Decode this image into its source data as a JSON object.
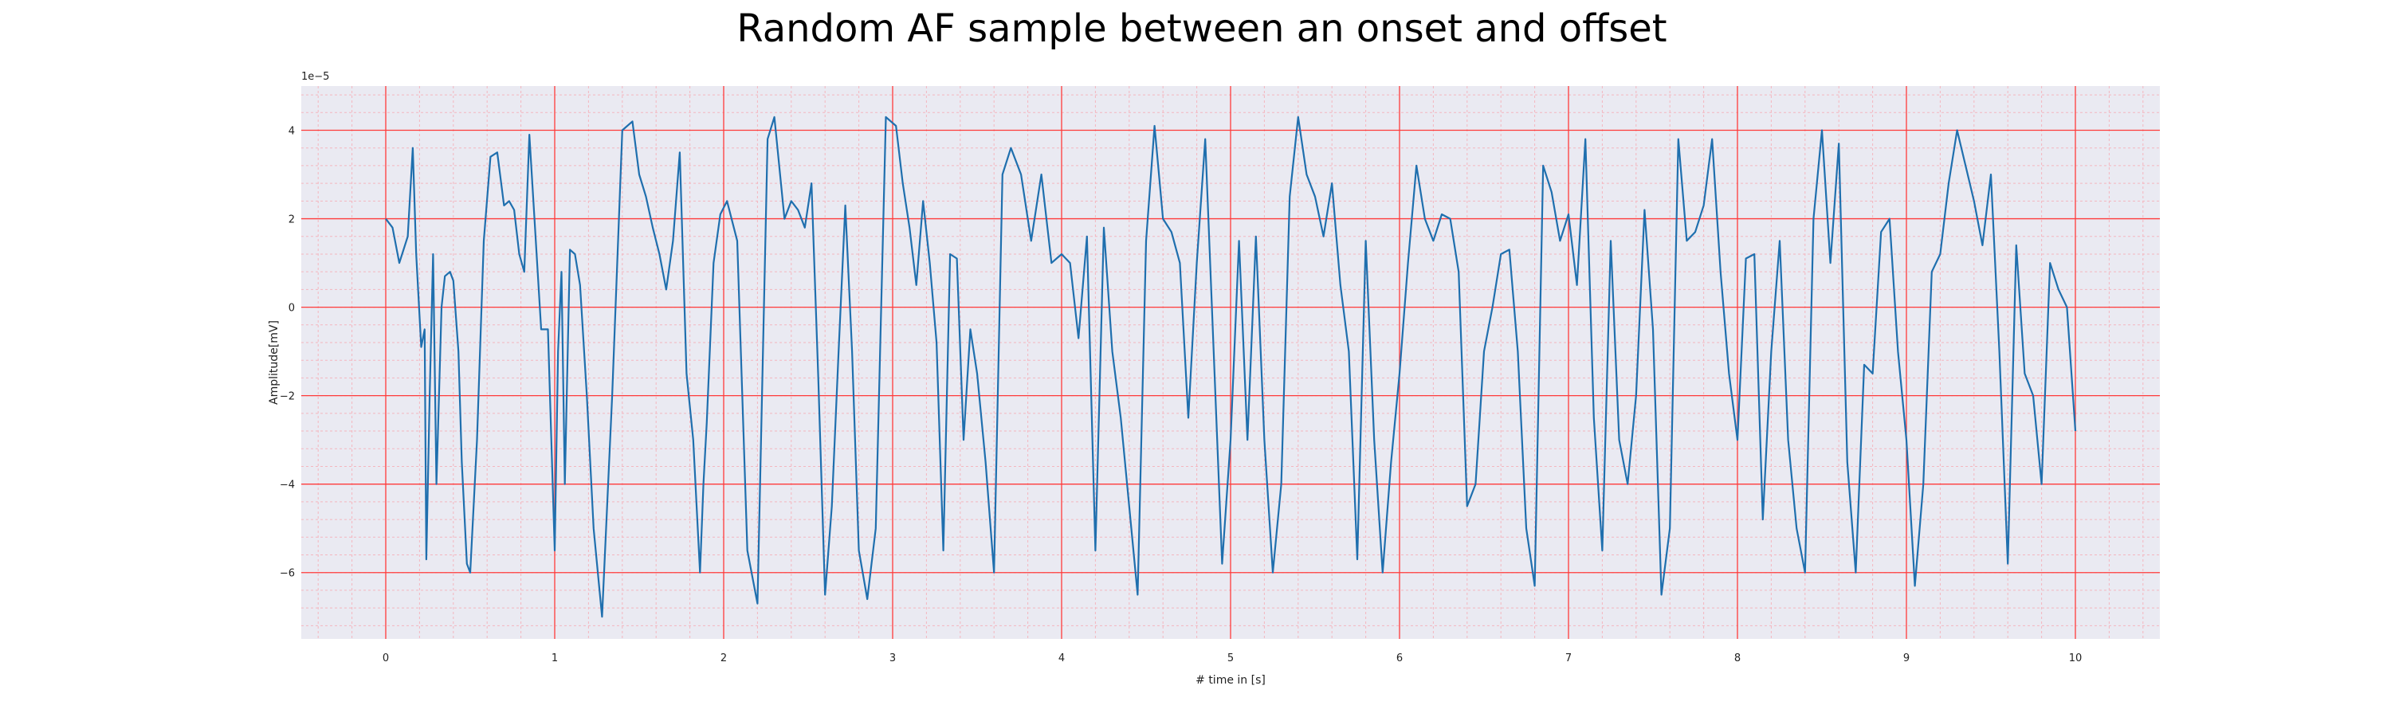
{
  "chart_data": {
    "type": "line",
    "title": "Random AF sample between an onset and offset",
    "xlabel": "# time in [s]",
    "ylabel": "Amplitude[mV]",
    "y_offset_label": "1e−5",
    "xlim": [
      -0.5,
      10.5
    ],
    "ylim": [
      -7.5,
      5.0
    ],
    "x_ticks": [
      0,
      1,
      2,
      3,
      4,
      5,
      6,
      7,
      8,
      9,
      10
    ],
    "y_ticks": [
      -6,
      -4,
      -2,
      0,
      2,
      4
    ],
    "y_tick_labels": [
      "−6",
      "−4",
      "−2",
      "0",
      "2",
      "4"
    ],
    "grid": true,
    "y_unit_scale": "1e-5",
    "colors": {
      "background": "#eaeaf2",
      "major_grid": "#ff3b3b",
      "minor_grid": "#f4b6bf",
      "line": "#1f6fae"
    },
    "series": [
      {
        "x": [
          0.0,
          0.04,
          0.08,
          0.13,
          0.16,
          0.18,
          0.21,
          0.23,
          0.24,
          0.26,
          0.28,
          0.3,
          0.33,
          0.35,
          0.38,
          0.4,
          0.43,
          0.45,
          0.48,
          0.5,
          0.54,
          0.58,
          0.62,
          0.66,
          0.7,
          0.73,
          0.76,
          0.79,
          0.82,
          0.85,
          0.88,
          0.92,
          0.96,
          1.0,
          1.02,
          1.04,
          1.06,
          1.09,
          1.12,
          1.15,
          1.19,
          1.23,
          1.28,
          1.34,
          1.4,
          1.46,
          1.5,
          1.54,
          1.58,
          1.62,
          1.66,
          1.7,
          1.74,
          1.78,
          1.82,
          1.86,
          1.88,
          1.9,
          1.94,
          1.98,
          2.02,
          2.08,
          2.14,
          2.2,
          2.26,
          2.3,
          2.36,
          2.4,
          2.44,
          2.48,
          2.52,
          2.56,
          2.6,
          2.64,
          2.68,
          2.72,
          2.76,
          2.8,
          2.85,
          2.9,
          2.96,
          3.02,
          3.06,
          3.1,
          3.14,
          3.18,
          3.22,
          3.26,
          3.3,
          3.34,
          3.38,
          3.42,
          3.46,
          3.5,
          3.55,
          3.6,
          3.65,
          3.7,
          3.76,
          3.82,
          3.88,
          3.94,
          4.0,
          4.05,
          4.1,
          4.15,
          4.2,
          4.25,
          4.3,
          4.35,
          4.4,
          4.45,
          4.5,
          4.55,
          4.6,
          4.65,
          4.7,
          4.75,
          4.8,
          4.85,
          4.9,
          4.95,
          5.0,
          5.05,
          5.1,
          5.15,
          5.2,
          5.25,
          5.3,
          5.35,
          5.4,
          5.45,
          5.5,
          5.55,
          5.6,
          5.65,
          5.7,
          5.75,
          5.8,
          5.85,
          5.9,
          5.95,
          6.0,
          6.05,
          6.1,
          6.15,
          6.2,
          6.25,
          6.3,
          6.35,
          6.4,
          6.45,
          6.5,
          6.55,
          6.6,
          6.65,
          6.7,
          6.75,
          6.8,
          6.85,
          6.9,
          6.95,
          7.0,
          7.05,
          7.1,
          7.15,
          7.2,
          7.25,
          7.3,
          7.35,
          7.4,
          7.45,
          7.5,
          7.55,
          7.6,
          7.65,
          7.7,
          7.75,
          7.8,
          7.85,
          7.9,
          7.95,
          8.0,
          8.05,
          8.1,
          8.15,
          8.2,
          8.25,
          8.3,
          8.35,
          8.4,
          8.45,
          8.5,
          8.55,
          8.6,
          8.65,
          8.7,
          8.75,
          8.8,
          8.85,
          8.9,
          8.95,
          9.0,
          9.05,
          9.1,
          9.15,
          9.2,
          9.25,
          9.3,
          9.35,
          9.4,
          9.45,
          9.5,
          9.55,
          9.6,
          9.65,
          9.7,
          9.75,
          9.8,
          9.85,
          9.9,
          9.95,
          10.0
        ],
        "y": [
          2.0,
          1.8,
          1.0,
          1.6,
          3.6,
          1.2,
          -0.9,
          -0.5,
          -5.7,
          -2.0,
          1.2,
          -4.0,
          0.0,
          0.7,
          0.8,
          0.6,
          -1.0,
          -3.5,
          -5.8,
          -6.0,
          -3.0,
          1.5,
          3.4,
          3.5,
          2.3,
          2.4,
          2.2,
          1.2,
          0.8,
          3.9,
          2.0,
          -0.5,
          -0.5,
          -5.5,
          -1.0,
          0.8,
          -4.0,
          1.3,
          1.2,
          0.5,
          -2.0,
          -5.0,
          -7.0,
          -2.0,
          4.0,
          4.2,
          3.0,
          2.5,
          1.8,
          1.2,
          0.4,
          1.5,
          3.5,
          -1.5,
          -3.0,
          -6.0,
          -4.0,
          -2.6,
          1.0,
          2.1,
          2.4,
          1.5,
          -5.5,
          -6.7,
          3.8,
          4.3,
          2.0,
          2.4,
          2.2,
          1.8,
          2.8,
          -1.6,
          -6.5,
          -4.5,
          -1.0,
          2.3,
          -1.0,
          -5.5,
          -6.6,
          -5.0,
          4.3,
          4.1,
          2.8,
          1.8,
          0.5,
          2.4,
          1.0,
          -0.8,
          -5.5,
          1.2,
          1.1,
          -3.0,
          -0.5,
          -1.5,
          -3.5,
          -6.0,
          3.0,
          3.6,
          3.0,
          1.5,
          3.0,
          1.0,
          1.2,
          1.0,
          -0.7,
          1.6,
          -5.5,
          1.8,
          -1.0,
          -2.5,
          -4.5,
          -6.5,
          1.5,
          4.1,
          2.0,
          1.7,
          1.0,
          -2.5,
          1.0,
          3.8,
          -1.0,
          -5.8,
          -3.0,
          1.5,
          -3.0,
          1.6,
          -3.0,
          -6.0,
          -4.0,
          2.5,
          4.3,
          3.0,
          2.5,
          1.6,
          2.8,
          0.5,
          -1.0,
          -5.7,
          1.5,
          -3.0,
          -6.0,
          -3.5,
          -1.5,
          1.0,
          3.2,
          2.0,
          1.5,
          2.1,
          2.0,
          0.8,
          -4.5,
          -4.0,
          -1.0,
          0.0,
          1.2,
          1.3,
          -1.0,
          -5.0,
          -6.3,
          3.2,
          2.6,
          1.5,
          2.1,
          0.5,
          3.8,
          -2.5,
          -5.5,
          1.5,
          -3.0,
          -4.0,
          -2.0,
          2.2,
          -0.5,
          -6.5,
          -5.0,
          3.8,
          1.5,
          1.7,
          2.3,
          3.8,
          0.8,
          -1.5,
          -3.0,
          1.1,
          1.2,
          -4.8,
          -1.0,
          1.5,
          -3.0,
          -5.0,
          -6.0,
          2.0,
          4.0,
          1.0,
          3.7,
          -3.5,
          -6.0,
          -1.3,
          -1.5,
          1.7,
          2.0,
          -1.0,
          -3.0,
          -6.3,
          -4.0,
          0.8,
          1.2,
          2.8,
          4.0,
          3.2,
          2.4,
          1.4,
          3.0,
          -1.0,
          -5.8,
          1.4,
          -1.5,
          -2.0,
          -4.0,
          1.0,
          0.4,
          0.0,
          -2.8
        ]
      }
    ]
  }
}
